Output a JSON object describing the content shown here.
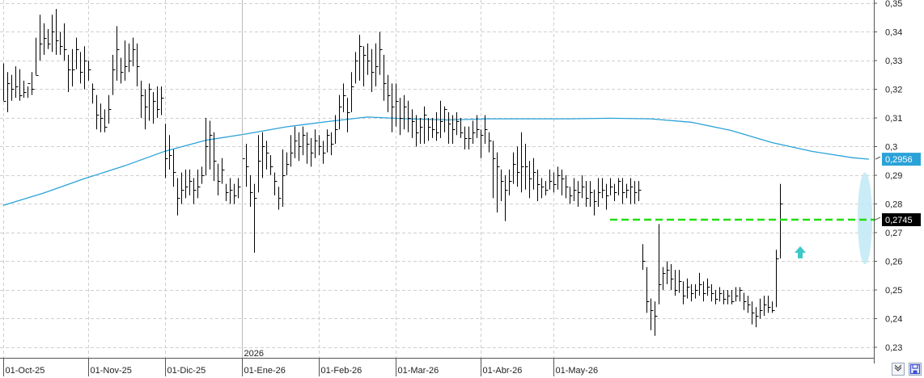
{
  "chart_data": {
    "type": "ohlc-bar",
    "y_axis": {
      "min": 0.227,
      "max": 0.352,
      "ticks": [
        "0,35",
        "0,34",
        "0,33",
        "0,32",
        "0,31",
        "0,3",
        "0,29",
        "0,28",
        "0,27",
        "0,26",
        "0,25",
        "0,24",
        "0,23"
      ],
      "tick_values": [
        0.35,
        0.34,
        0.33,
        0.32,
        0.31,
        0.3,
        0.29,
        0.28,
        0.27,
        0.26,
        0.25,
        0.24,
        0.23
      ],
      "side": "right"
    },
    "x_axis": {
      "labels": [
        "01-Oct-25",
        "01-Nov-25",
        "01-Dic-25",
        "01-Ene-26",
        "01-Feb-26",
        "01-Mar-26",
        "01-Abr-26",
        "01-May-26"
      ],
      "label_bar_index": [
        0,
        21,
        40,
        59,
        78,
        97,
        118,
        136
      ],
      "year_marker": "2026",
      "year_marker_bar_index": 59
    },
    "grid": "dashed",
    "price_bars": [
      [
        0.316,
        0.329,
        0.316
      ],
      [
        0.322,
        0.326,
        0.312
      ],
      [
        0.32,
        0.325,
        0.316
      ],
      [
        0.321,
        0.328,
        0.317
      ],
      [
        0.318,
        0.327,
        0.316
      ],
      [
        0.319,
        0.323,
        0.317
      ],
      [
        0.322,
        0.321,
        0.317
      ],
      [
        0.32,
        0.326,
        0.318
      ],
      [
        0.325,
        0.338,
        0.325
      ],
      [
        0.336,
        0.346,
        0.33
      ],
      [
        0.338,
        0.343,
        0.332
      ],
      [
        0.336,
        0.341,
        0.334
      ],
      [
        0.34,
        0.346,
        0.333
      ],
      [
        0.337,
        0.348,
        0.332
      ],
      [
        0.335,
        0.34,
        0.332
      ],
      [
        0.334,
        0.343,
        0.33
      ],
      [
        0.327,
        0.332,
        0.319
      ],
      [
        0.327,
        0.334,
        0.321
      ],
      [
        0.334,
        0.338,
        0.327
      ],
      [
        0.326,
        0.333,
        0.322
      ],
      [
        0.33,
        0.335,
        0.32
      ],
      [
        0.327,
        0.33,
        0.323
      ],
      [
        0.32,
        0.322,
        0.315
      ],
      [
        0.311,
        0.318,
        0.306
      ],
      [
        0.31,
        0.315,
        0.305
      ],
      [
        0.307,
        0.313,
        0.305
      ],
      [
        0.313,
        0.318,
        0.308
      ],
      [
        0.327,
        0.332,
        0.318
      ],
      [
        0.334,
        0.342,
        0.323
      ],
      [
        0.326,
        0.331,
        0.322
      ],
      [
        0.328,
        0.337,
        0.323
      ],
      [
        0.33,
        0.336,
        0.326
      ],
      [
        0.334,
        0.338,
        0.328
      ],
      [
        0.328,
        0.336,
        0.321
      ],
      [
        0.318,
        0.323,
        0.31
      ],
      [
        0.314,
        0.32,
        0.306
      ],
      [
        0.32,
        0.322,
        0.309
      ],
      [
        0.316,
        0.319,
        0.308
      ],
      [
        0.313,
        0.321,
        0.31
      ],
      [
        0.317,
        0.321,
        0.311
      ],
      [
        0.296,
        0.308,
        0.289
      ],
      [
        0.297,
        0.304,
        0.292
      ],
      [
        0.291,
        0.299,
        0.286
      ],
      [
        0.282,
        0.289,
        0.276
      ],
      [
        0.285,
        0.291,
        0.28
      ],
      [
        0.286,
        0.292,
        0.282
      ],
      [
        0.288,
        0.292,
        0.283
      ],
      [
        0.285,
        0.289,
        0.28
      ],
      [
        0.286,
        0.292,
        0.282
      ],
      [
        0.29,
        0.293,
        0.287
      ],
      [
        0.3,
        0.31,
        0.29
      ],
      [
        0.304,
        0.309,
        0.292
      ],
      [
        0.295,
        0.305,
        0.288
      ],
      [
        0.288,
        0.294,
        0.283
      ],
      [
        0.292,
        0.296,
        0.287
      ],
      [
        0.284,
        0.287,
        0.281
      ],
      [
        0.285,
        0.289,
        0.28
      ],
      [
        0.283,
        0.287,
        0.28
      ],
      [
        0.286,
        0.289,
        0.282
      ],
      [
        0.296,
        0.305,
        0.29
      ],
      [
        0.293,
        0.301,
        0.286
      ],
      [
        0.284,
        0.29,
        0.279
      ],
      [
        0.282,
        0.287,
        0.263
      ],
      [
        0.295,
        0.304,
        0.284
      ],
      [
        0.3,
        0.305,
        0.289
      ],
      [
        0.298,
        0.302,
        0.292
      ],
      [
        0.293,
        0.297,
        0.29
      ],
      [
        0.288,
        0.291,
        0.283
      ],
      [
        0.282,
        0.286,
        0.278
      ],
      [
        0.29,
        0.299,
        0.279
      ],
      [
        0.294,
        0.298,
        0.29
      ],
      [
        0.298,
        0.304,
        0.293
      ],
      [
        0.302,
        0.307,
        0.296
      ],
      [
        0.3,
        0.305,
        0.295
      ],
      [
        0.304,
        0.307,
        0.297
      ],
      [
        0.301,
        0.305,
        0.294
      ],
      [
        0.298,
        0.303,
        0.293
      ],
      [
        0.302,
        0.306,
        0.296
      ],
      [
        0.3,
        0.304,
        0.297
      ],
      [
        0.298,
        0.302,
        0.294
      ],
      [
        0.304,
        0.306,
        0.298
      ],
      [
        0.301,
        0.305,
        0.297
      ],
      [
        0.306,
        0.311,
        0.301
      ],
      [
        0.314,
        0.318,
        0.306
      ],
      [
        0.318,
        0.322,
        0.312
      ],
      [
        0.312,
        0.317,
        0.305
      ],
      [
        0.321,
        0.326,
        0.312
      ],
      [
        0.33,
        0.333,
        0.322
      ],
      [
        0.335,
        0.339,
        0.323
      ],
      [
        0.332,
        0.335,
        0.321
      ],
      [
        0.33,
        0.336,
        0.325
      ],
      [
        0.326,
        0.334,
        0.319
      ],
      [
        0.328,
        0.336,
        0.321
      ],
      [
        0.334,
        0.34,
        0.325
      ],
      [
        0.322,
        0.332,
        0.316
      ],
      [
        0.318,
        0.325,
        0.312
      ],
      [
        0.314,
        0.322,
        0.305
      ],
      [
        0.316,
        0.322,
        0.307
      ],
      [
        0.31,
        0.317,
        0.304
      ],
      [
        0.314,
        0.318,
        0.306
      ],
      [
        0.31,
        0.316,
        0.305
      ],
      [
        0.309,
        0.313,
        0.303
      ],
      [
        0.305,
        0.311,
        0.3
      ],
      [
        0.307,
        0.31,
        0.301
      ],
      [
        0.311,
        0.314,
        0.301
      ],
      [
        0.307,
        0.31,
        0.302
      ],
      [
        0.306,
        0.31,
        0.303
      ],
      [
        0.305,
        0.312,
        0.302
      ],
      [
        0.309,
        0.316,
        0.303
      ],
      [
        0.313,
        0.314,
        0.305
      ],
      [
        0.308,
        0.312,
        0.301
      ],
      [
        0.306,
        0.311,
        0.301
      ],
      [
        0.309,
        0.312,
        0.304
      ],
      [
        0.305,
        0.31,
        0.303
      ],
      [
        0.303,
        0.307,
        0.299
      ],
      [
        0.303,
        0.307,
        0.299
      ],
      [
        0.305,
        0.309,
        0.301
      ],
      [
        0.306,
        0.311,
        0.303
      ],
      [
        0.304,
        0.306,
        0.296
      ],
      [
        0.306,
        0.311,
        0.301
      ],
      [
        0.302,
        0.305,
        0.298
      ],
      [
        0.296,
        0.302,
        0.282
      ],
      [
        0.293,
        0.298,
        0.277
      ],
      [
        0.288,
        0.292,
        0.281
      ],
      [
        0.285,
        0.29,
        0.274
      ],
      [
        0.288,
        0.292,
        0.283
      ],
      [
        0.294,
        0.298,
        0.287
      ],
      [
        0.291,
        0.3,
        0.286
      ],
      [
        0.293,
        0.305,
        0.284
      ],
      [
        0.293,
        0.301,
        0.285
      ],
      [
        0.289,
        0.295,
        0.282
      ],
      [
        0.291,
        0.296,
        0.285
      ],
      [
        0.287,
        0.292,
        0.281
      ],
      [
        0.286,
        0.289,
        0.282
      ],
      [
        0.285,
        0.288,
        0.283
      ],
      [
        0.288,
        0.292,
        0.285
      ],
      [
        0.287,
        0.291,
        0.284
      ],
      [
        0.29,
        0.293,
        0.285
      ],
      [
        0.289,
        0.292,
        0.283
      ],
      [
        0.286,
        0.29,
        0.282
      ],
      [
        0.283,
        0.286,
        0.28
      ],
      [
        0.285,
        0.289,
        0.281
      ],
      [
        0.284,
        0.288,
        0.279
      ],
      [
        0.286,
        0.29,
        0.282
      ],
      [
        0.282,
        0.288,
        0.279
      ],
      [
        0.284,
        0.288,
        0.279
      ],
      [
        0.281,
        0.285,
        0.276
      ],
      [
        0.284,
        0.289,
        0.279
      ],
      [
        0.285,
        0.289,
        0.282
      ],
      [
        0.283,
        0.287,
        0.278
      ],
      [
        0.286,
        0.289,
        0.283
      ],
      [
        0.284,
        0.287,
        0.281
      ],
      [
        0.288,
        0.289,
        0.283
      ],
      [
        0.284,
        0.289,
        0.28
      ],
      [
        0.285,
        0.287,
        0.282
      ],
      [
        0.286,
        0.289,
        0.28
      ],
      [
        0.284,
        0.288,
        0.28
      ],
      [
        0.285,
        0.288,
        0.281
      ],
      [
        0.26,
        0.266,
        0.257
      ],
      [
        0.246,
        0.258,
        0.242
      ],
      [
        0.243,
        0.247,
        0.236
      ],
      [
        0.241,
        0.246,
        0.234
      ],
      [
        0.252,
        0.273,
        0.245
      ],
      [
        0.256,
        0.258,
        0.25
      ],
      [
        0.257,
        0.26,
        0.252
      ],
      [
        0.254,
        0.259,
        0.25
      ],
      [
        0.25,
        0.257,
        0.248
      ],
      [
        0.253,
        0.257,
        0.249
      ],
      [
        0.248,
        0.253,
        0.245
      ],
      [
        0.251,
        0.254,
        0.247
      ],
      [
        0.249,
        0.252,
        0.246
      ],
      [
        0.25,
        0.252,
        0.247
      ],
      [
        0.252,
        0.256,
        0.248
      ],
      [
        0.249,
        0.253,
        0.246
      ],
      [
        0.251,
        0.254,
        0.248
      ],
      [
        0.249,
        0.252,
        0.246
      ],
      [
        0.247,
        0.25,
        0.245
      ],
      [
        0.249,
        0.251,
        0.246
      ],
      [
        0.247,
        0.25,
        0.245
      ],
      [
        0.248,
        0.25,
        0.245
      ],
      [
        0.246,
        0.25,
        0.245
      ],
      [
        0.248,
        0.251,
        0.246
      ],
      [
        0.25,
        0.251,
        0.246
      ],
      [
        0.246,
        0.249,
        0.243
      ],
      [
        0.245,
        0.248,
        0.242
      ],
      [
        0.242,
        0.246,
        0.238
      ],
      [
        0.241,
        0.244,
        0.237
      ],
      [
        0.243,
        0.247,
        0.24
      ],
      [
        0.245,
        0.248,
        0.241
      ],
      [
        0.244,
        0.248,
        0.242
      ],
      [
        0.243,
        0.246,
        0.242
      ],
      [
        0.261,
        0.264,
        0.244
      ],
      [
        0.28,
        0.287,
        0.261
      ]
    ],
    "moving_average": {
      "color": "#2aa2d8",
      "start_value": 0.2795,
      "end_value": 0.2956,
      "points": [
        [
          0,
          0.2795
        ],
        [
          10,
          0.2838
        ],
        [
          20,
          0.2888
        ],
        [
          30,
          0.2933
        ],
        [
          40,
          0.2984
        ],
        [
          50,
          0.3022
        ],
        [
          60,
          0.3044
        ],
        [
          70,
          0.3069
        ],
        [
          80,
          0.3087
        ],
        [
          90,
          0.3103
        ],
        [
          100,
          0.3097
        ],
        [
          110,
          0.3093
        ],
        [
          120,
          0.3097
        ],
        [
          130,
          0.3097
        ],
        [
          140,
          0.3097
        ],
        [
          150,
          0.3099
        ],
        [
          160,
          0.3097
        ],
        [
          170,
          0.3085
        ],
        [
          180,
          0.3056
        ],
        [
          190,
          0.3014
        ],
        [
          200,
          0.2983
        ],
        [
          210,
          0.2961
        ],
        [
          214,
          0.2956
        ]
      ]
    },
    "price_labels": [
      {
        "text": "0,2956",
        "value": 0.2956,
        "color": "#2aa2d8",
        "text_color": "#ffffff"
      },
      {
        "text": "0,2745",
        "value": 0.2745,
        "color": "#000000",
        "text_color": "#ffffff"
      }
    ],
    "resistance_line": {
      "value": 0.2745,
      "color": "#22dd11",
      "start_bar": 150,
      "end_bar": 214
    },
    "up_arrow": {
      "bar_index": 197,
      "value": 0.263,
      "color": "#3cc8c8"
    },
    "highlight_ellipse": {
      "bar_index": 213,
      "value_top": 0.291,
      "value_bottom": 0.259,
      "color": "#bfe9f6"
    }
  },
  "ui": {
    "button_1_icon": "collapse-icon",
    "button_2_icon": "floppy-save-icon"
  }
}
